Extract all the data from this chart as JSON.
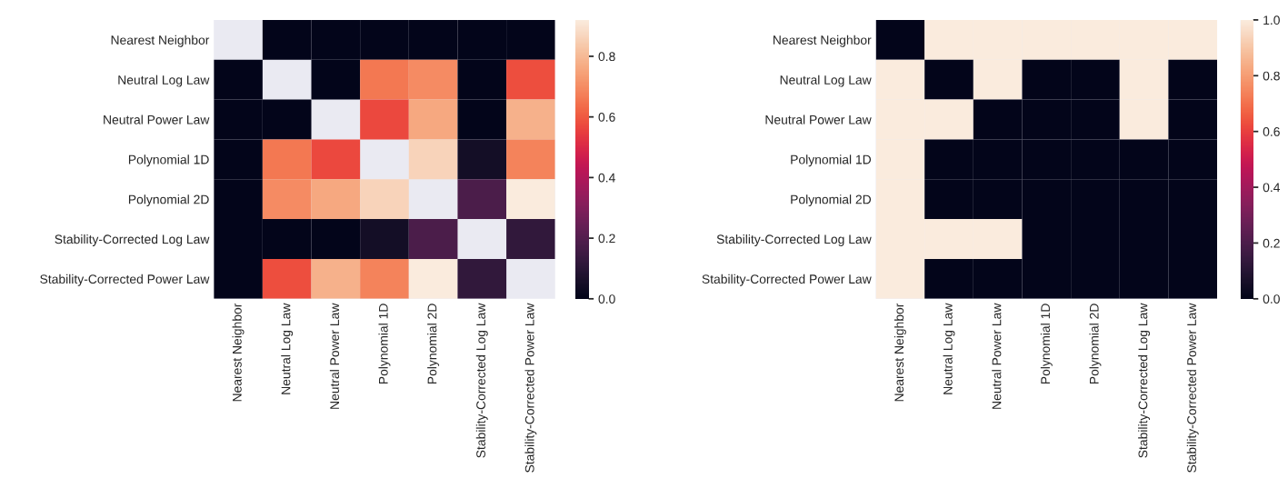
{
  "chart_data": [
    {
      "type": "heatmap",
      "categories": [
        "Nearest Neighbor",
        "Neutral Log Law",
        "Neutral Power Law",
        "Polynomial 1D",
        "Polynomial 2D",
        "Stability-Corrected Log Law",
        "Stability-Corrected Power Law"
      ],
      "y_categories": [
        "Nearest Neighbor",
        "Neutral Log Law",
        "Neutral Power Law",
        "Polynomial 1D",
        "Polynomial 2D",
        "Stability-Corrected Log Law",
        "Stability-Corrected Power Law"
      ],
      "cells": [
        [
          null,
          0,
          0,
          0,
          0,
          0,
          0
        ],
        [
          0,
          null,
          0,
          0.66,
          0.7,
          0,
          0.58
        ],
        [
          0,
          0,
          null,
          0.57,
          0.76,
          0,
          0.78
        ],
        [
          0,
          0.66,
          0.57,
          null,
          0.86,
          0.05,
          0.68
        ],
        [
          0,
          0.7,
          0.76,
          0.86,
          null,
          0.18,
          0.92
        ],
        [
          0,
          0,
          0,
          0.05,
          0.18,
          null,
          0.12
        ],
        [
          0,
          0.58,
          0.78,
          0.68,
          0.92,
          0.12,
          null
        ]
      ],
      "clim": [
        0,
        0.92
      ],
      "cticks": [
        {
          "value": 0,
          "label": "0.0"
        },
        {
          "value": 0.2,
          "label": "0.2"
        },
        {
          "value": 0.4,
          "label": "0.4"
        },
        {
          "value": 0.6,
          "label": "0.6"
        },
        {
          "value": 0.8,
          "label": "0.8"
        }
      ]
    },
    {
      "type": "heatmap",
      "categories": [
        "Nearest Neighbor",
        "Neutral Log Law",
        "Neutral Power Law",
        "Polynomial 1D",
        "Polynomial 2D",
        "Stability-Corrected Log Law",
        "Stability-Corrected Power Law"
      ],
      "y_categories": [
        "Nearest Neighbor",
        "Neutral Log Law",
        "Neutral Power Law",
        "Polynomial 1D",
        "Polynomial 2D",
        "Stability-Corrected Log Law",
        "Stability-Corrected Power Law"
      ],
      "cells": [
        [
          0,
          1,
          1,
          1,
          1,
          1,
          1
        ],
        [
          1,
          0,
          1,
          0,
          0,
          1,
          0
        ],
        [
          1,
          1,
          0,
          0,
          0,
          1,
          0
        ],
        [
          1,
          0,
          0,
          0,
          0,
          0,
          0
        ],
        [
          1,
          0,
          0,
          0,
          0,
          0,
          0
        ],
        [
          1,
          1,
          1,
          0,
          0,
          0,
          0
        ],
        [
          1,
          0,
          0,
          0,
          0,
          0,
          0
        ]
      ],
      "clim": [
        0,
        1
      ],
      "cticks": [
        {
          "value": 0,
          "label": "0.0"
        },
        {
          "value": 0.2,
          "label": "0.2"
        },
        {
          "value": 0.4,
          "label": "0.4"
        },
        {
          "value": 0.6,
          "label": "0.6"
        },
        {
          "value": 0.8,
          "label": "0.8"
        },
        {
          "value": 1,
          "label": "1.0"
        }
      ]
    }
  ]
}
